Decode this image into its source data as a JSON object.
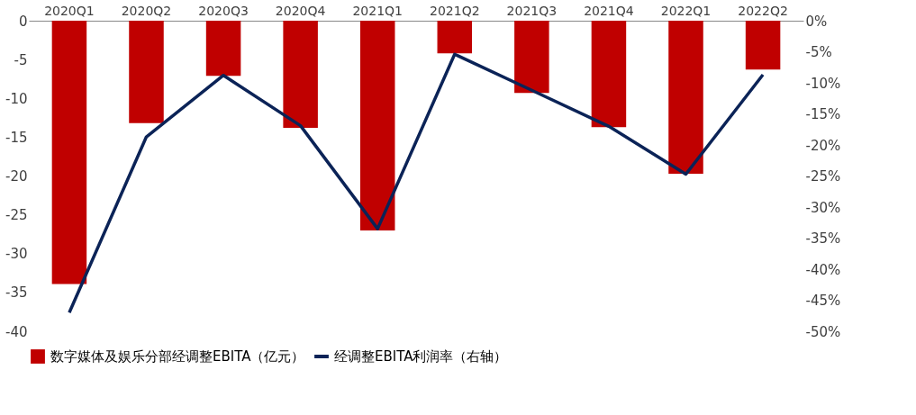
{
  "chart_data": {
    "type": "bar",
    "categories": [
      "2020Q1",
      "2020Q2",
      "2020Q3",
      "2020Q4",
      "2021Q1",
      "2021Q2",
      "2021Q3",
      "2021Q4",
      "2022Q1",
      "2022Q2"
    ],
    "series": [
      {
        "name": "数字媒体及娱乐分部经调整EBITA（亿元）",
        "color": "#c00000",
        "values": [
          -33.9,
          -13.2,
          -7.1,
          -13.8,
          -27.0,
          -4.2,
          -9.3,
          -13.7,
          -19.7,
          -6.3
        ]
      },
      {
        "name": "经调整EBITA利润率（右轴）",
        "color": "#0b2357",
        "type": "line",
        "axis": "y2",
        "values": [
          -47.0,
          -18.7,
          -8.8,
          -16.9,
          -33.5,
          -5.4,
          -11.2,
          -17.0,
          -24.7,
          -8.7
        ]
      }
    ],
    "ylim": [
      -40,
      0
    ],
    "yticks": [
      -40,
      -35,
      -30,
      -25,
      -20,
      -15,
      -10,
      -5,
      0
    ],
    "y2lim": [
      -50,
      0
    ],
    "y2ticks": [
      {
        "value": -50,
        "label": "-50%"
      },
      {
        "value": -45,
        "label": "-45%"
      },
      {
        "value": -40,
        "label": "-40%"
      },
      {
        "value": -35,
        "label": "-35%"
      },
      {
        "value": -30,
        "label": "-30%"
      },
      {
        "value": -25,
        "label": "-25%"
      },
      {
        "value": -20,
        "label": "-20%"
      },
      {
        "value": -15,
        "label": "-15%"
      },
      {
        "value": -10,
        "label": "-10%"
      },
      {
        "value": -5,
        "label": "-5%"
      },
      {
        "value": 0,
        "label": "0%"
      }
    ],
    "legend": "bottom",
    "grid": false,
    "marker": "none",
    "line_style": "solid"
  }
}
